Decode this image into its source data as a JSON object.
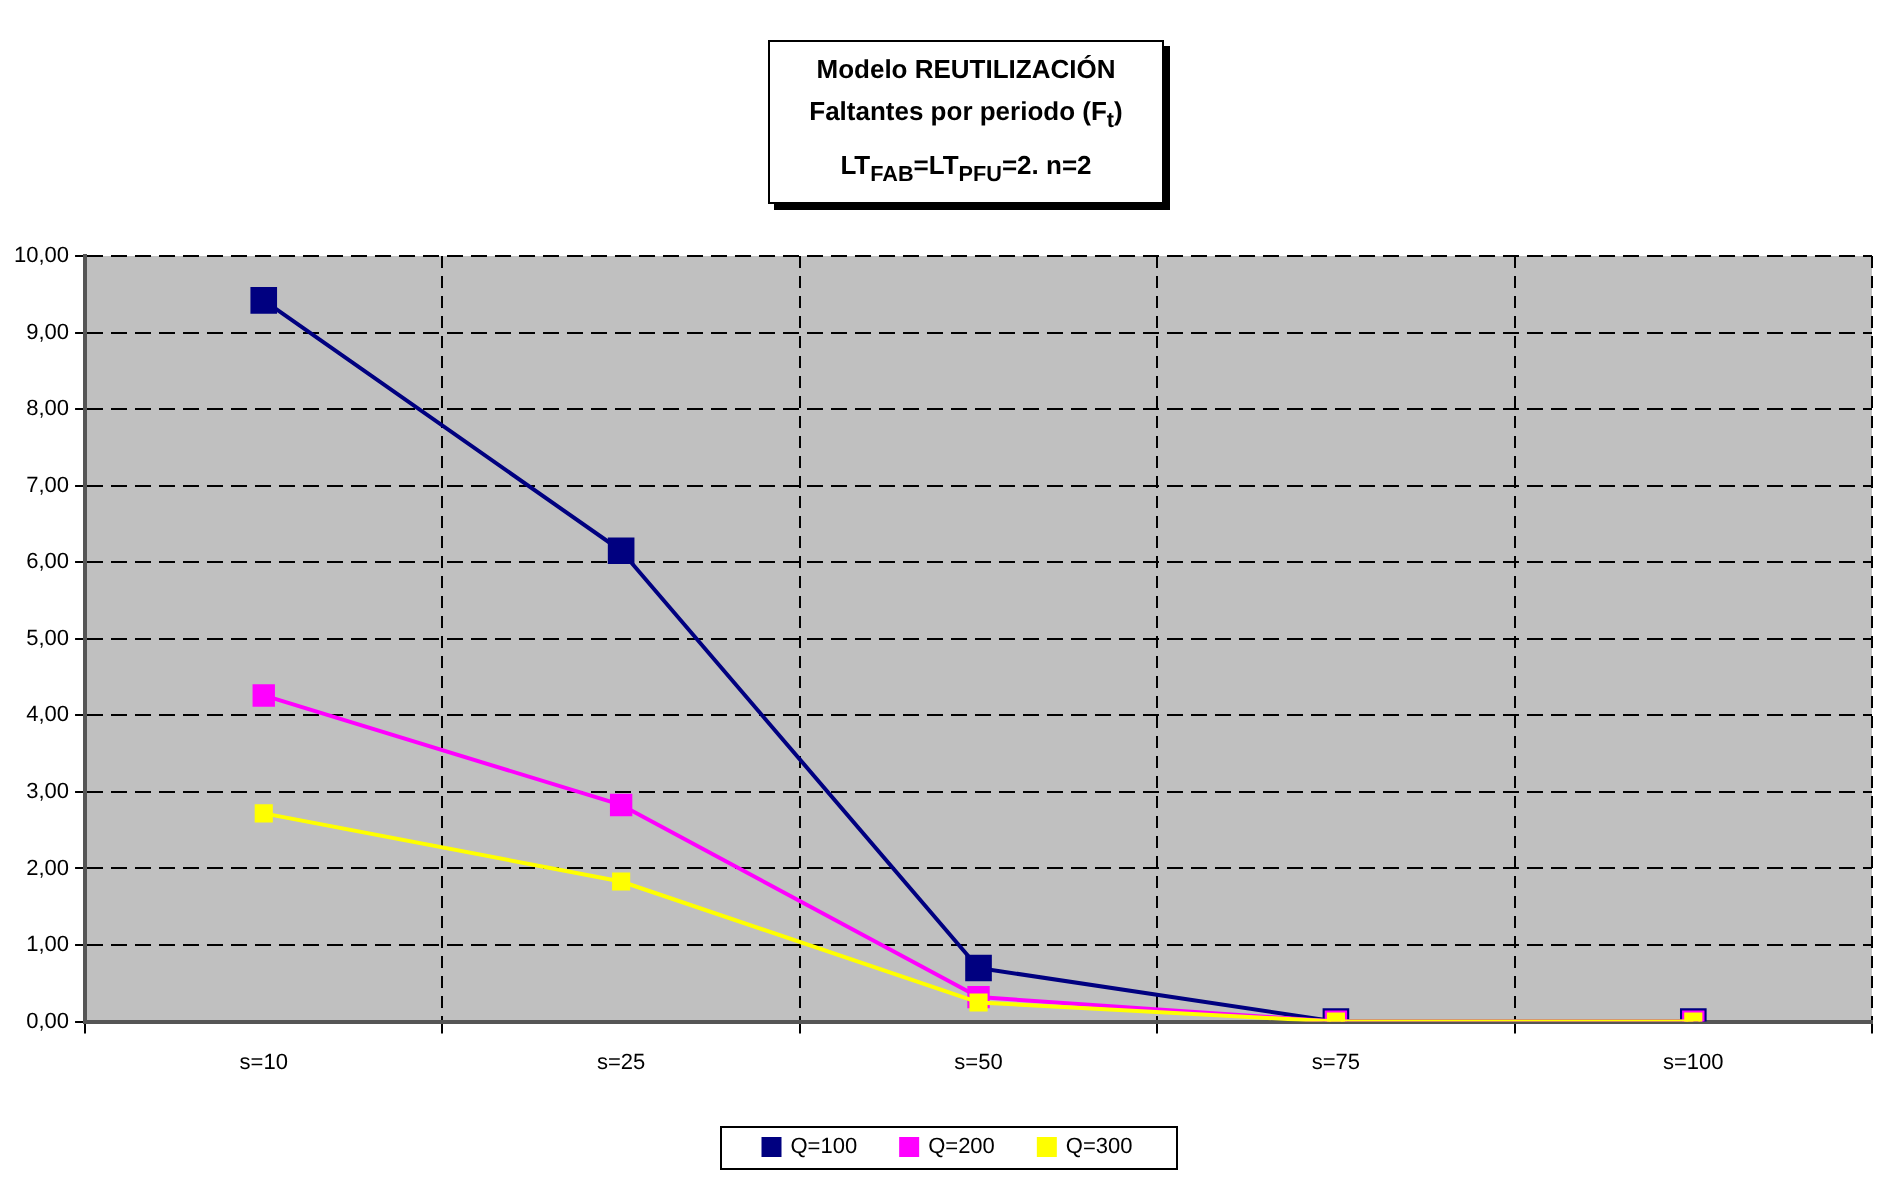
{
  "chart_data": {
    "type": "line",
    "title": "Modelo REUTILIZACIÓN\nFaltantes por periodo (F$_{t}$)\nLT$_{FAB}$=LT$_{PFU}$=2. n=2",
    "categories": [
      "s=10",
      "s=25",
      "s=50",
      "s=75",
      "s=100"
    ],
    "series": [
      {
        "name": "Q=100",
        "color": "#000080",
        "values": [
          9.42,
          6.15,
          0.7,
          0,
          0
        ]
      },
      {
        "name": "Q=200",
        "color": "#ff00ff",
        "values": [
          4.26,
          2.83,
          0.32,
          0,
          0
        ]
      },
      {
        "name": "Q=300",
        "color": "#ffff00",
        "values": [
          2.72,
          1.83,
          0.25,
          0,
          0
        ]
      }
    ],
    "ylim": [
      0,
      10
    ],
    "yticks": [
      {
        "value": 0,
        "label": "0,00"
      },
      {
        "value": 1,
        "label": "1,00"
      },
      {
        "value": 2,
        "label": "2,00"
      },
      {
        "value": 3,
        "label": "3,00"
      },
      {
        "value": 4,
        "label": "4,00"
      },
      {
        "value": 5,
        "label": "5,00"
      },
      {
        "value": 6,
        "label": "6,00"
      },
      {
        "value": 7,
        "label": "7,00"
      },
      {
        "value": 8,
        "label": "8,00"
      },
      {
        "value": 9,
        "label": "9,00"
      },
      {
        "value": 10,
        "label": "10,00"
      }
    ],
    "grid": true,
    "legend": "bottom",
    "marker": "square",
    "line_style": "solid"
  }
}
